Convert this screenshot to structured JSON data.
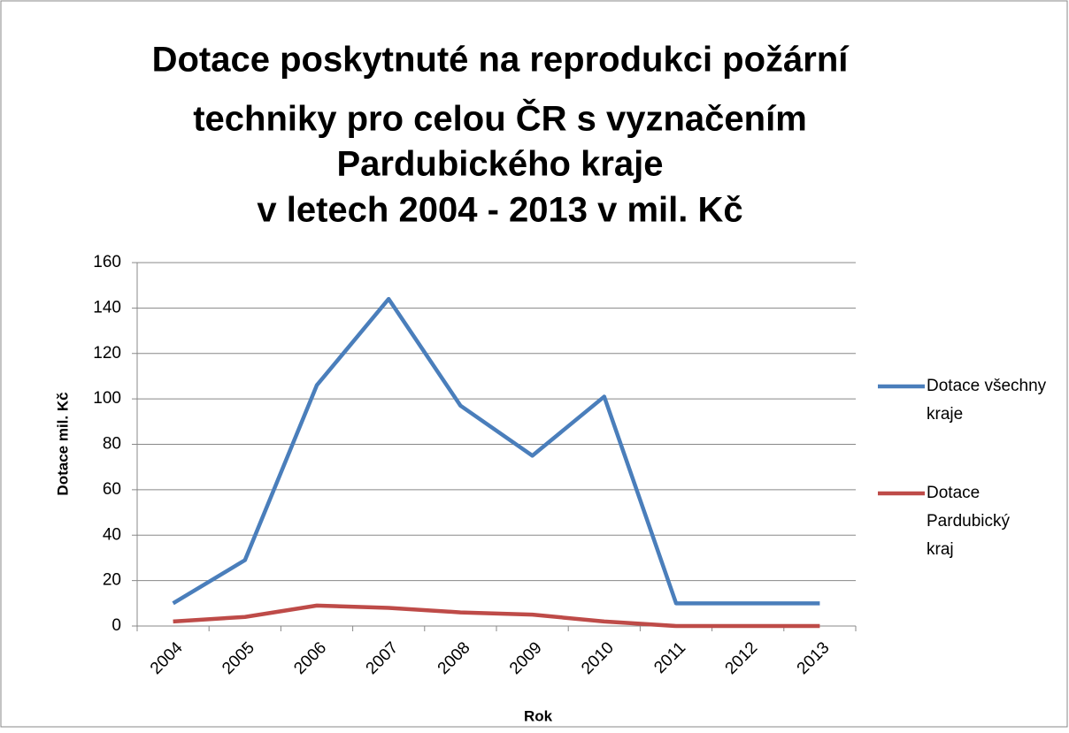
{
  "chart_data": {
    "type": "line",
    "title": [
      "Dotace poskytnuté na reprodukci požární",
      "techniky pro celou ČR s vyznačením",
      "Pardubického kraje",
      "v letech 2004 - 2013 v mil. Kč"
    ],
    "x_label": "Rok",
    "y_label": "Dotace mil. Kč",
    "categories": [
      "2004",
      "2005",
      "2006",
      "2007",
      "2008",
      "2009",
      "2010",
      "2011",
      "2012",
      "2013"
    ],
    "series": [
      {
        "name": "Dotace všechny kraje",
        "color": "#4a7ebb",
        "values": [
          10,
          29,
          106,
          144,
          97,
          75,
          101,
          10,
          10,
          10
        ]
      },
      {
        "name": "Dotace Pardubický kraj",
        "color": "#be4b48",
        "values": [
          2,
          4,
          9,
          8,
          6,
          5,
          2,
          0,
          0,
          0
        ]
      }
    ],
    "ylim": [
      0,
      160
    ],
    "yticks": [
      0,
      20,
      40,
      60,
      80,
      100,
      120,
      140,
      160
    ],
    "grid": true,
    "legend": "right"
  }
}
